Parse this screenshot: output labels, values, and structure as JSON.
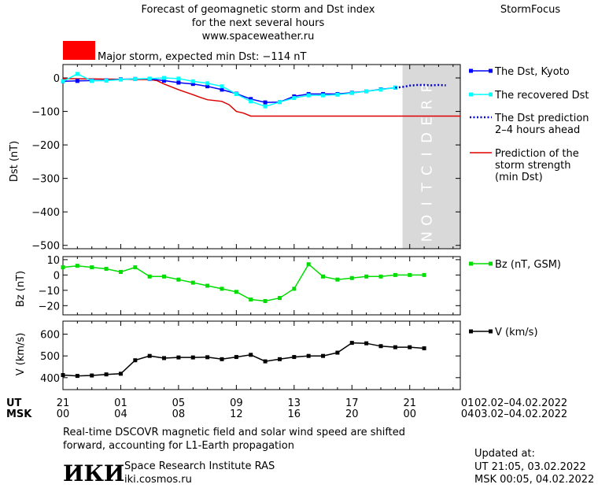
{
  "header": {
    "title_line1": "Forecast of geomagnetic storm and Dst index",
    "title_line2": "for the next several hours",
    "website": "www.spaceweather.ru",
    "brand": "StormFocus",
    "storm_label": "Major storm, expected min Dst: −114 nT",
    "storm_color": "#ff0000"
  },
  "footer": {
    "note_line1": "Real-time DSCOVR magnetic field and solar wind speed are shifted",
    "note_line2": "forward, accounting for L1-Earth propagation",
    "institute": "Space Research Institute RAS",
    "institute_url": "iki.cosmos.ru",
    "logo_text": "ИКИ",
    "updated_label": "Updated at:",
    "updated_ut": "UT   21:05, 03.02.2022",
    "updated_msk": "MSK 00:05, 04.02.2022"
  },
  "time_axis": {
    "ut_label": "UT",
    "msk_label": "MSK",
    "ut_ticks": [
      "21",
      "01",
      "05",
      "09",
      "13",
      "17",
      "21",
      "01"
    ],
    "msk_ticks": [
      "00",
      "04",
      "08",
      "12",
      "16",
      "20",
      "00",
      "04"
    ],
    "ut_range": "02.02–04.02.2022",
    "msk_range": "03.02–04.02.2022"
  },
  "chart_data": [
    {
      "type": "line",
      "ylabel": "Dst (nT)",
      "ylim": [
        -510,
        40
      ],
      "xlim": [
        0,
        27.5
      ],
      "yticks": [
        0,
        -100,
        -200,
        -300,
        -400,
        -500
      ],
      "prediction_region": [
        23.5,
        27.5
      ],
      "prediction_text": "PREDICTION",
      "series": [
        {
          "name": "The Dst, Kyoto",
          "color": "#0000ff",
          "style": "line-square",
          "x": [
            0,
            1,
            2,
            3,
            4,
            5,
            6,
            7,
            8,
            9,
            10,
            11,
            12,
            13,
            14,
            15,
            16,
            17,
            18,
            19,
            20,
            21,
            22,
            23
          ],
          "y": [
            -10,
            -9,
            -8,
            -7,
            -4,
            -3,
            -3,
            -8,
            -14,
            -18,
            -25,
            -35,
            -47,
            -63,
            -73,
            -72,
            -55,
            -48,
            -48,
            -48,
            -44,
            -40,
            -34,
            -29
          ]
        },
        {
          "name": "The recovered Dst",
          "color": "#00ffff",
          "style": "line-square",
          "x": [
            0,
            1,
            2,
            3,
            4,
            5,
            6,
            7,
            8,
            9,
            10,
            11,
            12,
            13,
            14,
            15,
            16,
            17,
            18,
            19,
            20,
            21,
            22,
            23
          ],
          "y": [
            -10,
            12,
            -9,
            -8,
            -5,
            -3,
            -2,
            0,
            -2,
            -10,
            -16,
            -25,
            -48,
            -70,
            -85,
            -72,
            -60,
            -52,
            -52,
            -50,
            -45,
            -40,
            -35,
            -29
          ]
        },
        {
          "name": "The Dst prediction\n2–4 hours ahead",
          "color": "#0000cc",
          "style": "dotted",
          "x": [
            23,
            23.5,
            24,
            24.5,
            25,
            25.5,
            26,
            26.5
          ],
          "y": [
            -29,
            -27,
            -23,
            -21,
            -21,
            -22,
            -21,
            -22
          ]
        },
        {
          "name": "Prediction of the\nstorm strength\n(min Dst)",
          "color": "#dd0000",
          "style": "line",
          "x": [
            0,
            2,
            4,
            6,
            6.5,
            7,
            8,
            9,
            9.5,
            10,
            11,
            11.5,
            12,
            12.5,
            13,
            27.5
          ],
          "y": [
            -2,
            -3,
            -4,
            -5,
            -8,
            -18,
            -35,
            -50,
            -58,
            -65,
            -70,
            -80,
            -100,
            -105,
            -114,
            -114
          ]
        }
      ]
    },
    {
      "type": "line",
      "ylabel": "Bz (nT)",
      "ylim": [
        -26,
        12
      ],
      "xlim": [
        0,
        27.5
      ],
      "yticks": [
        10,
        0,
        -10,
        -20
      ],
      "series": [
        {
          "name": "Bz (nT, GSM)",
          "color": "#00dd00",
          "style": "line-square",
          "x": [
            0,
            1,
            2,
            3,
            4,
            5,
            6,
            7,
            8,
            9,
            10,
            11,
            12,
            13,
            14,
            15,
            16,
            17,
            18,
            19,
            20,
            21,
            22,
            23,
            24,
            25
          ],
          "y": [
            5,
            6,
            5,
            4,
            2,
            5,
            -1,
            -1,
            -3,
            -5,
            -7,
            -9,
            -11,
            -16,
            -17,
            -15,
            -9,
            7,
            -1,
            -3,
            -2,
            -1,
            -1,
            0,
            0,
            0
          ]
        }
      ]
    },
    {
      "type": "line",
      "ylabel": "V (km/s)",
      "ylim": [
        345,
        660
      ],
      "xlim": [
        0,
        27.5
      ],
      "yticks": [
        600,
        500,
        400
      ],
      "series": [
        {
          "name": "V (km/s)",
          "color": "#000000",
          "style": "line-square",
          "x": [
            0,
            1,
            2,
            3,
            4,
            5,
            6,
            7,
            8,
            9,
            10,
            11,
            12,
            13,
            14,
            15,
            16,
            17,
            18,
            19,
            20,
            21,
            22,
            23,
            24,
            25
          ],
          "y": [
            412,
            408,
            410,
            415,
            418,
            480,
            500,
            490,
            493,
            493,
            494,
            485,
            495,
            505,
            475,
            485,
            495,
            500,
            500,
            515,
            560,
            558,
            545,
            540,
            540,
            535
          ]
        }
      ]
    }
  ]
}
